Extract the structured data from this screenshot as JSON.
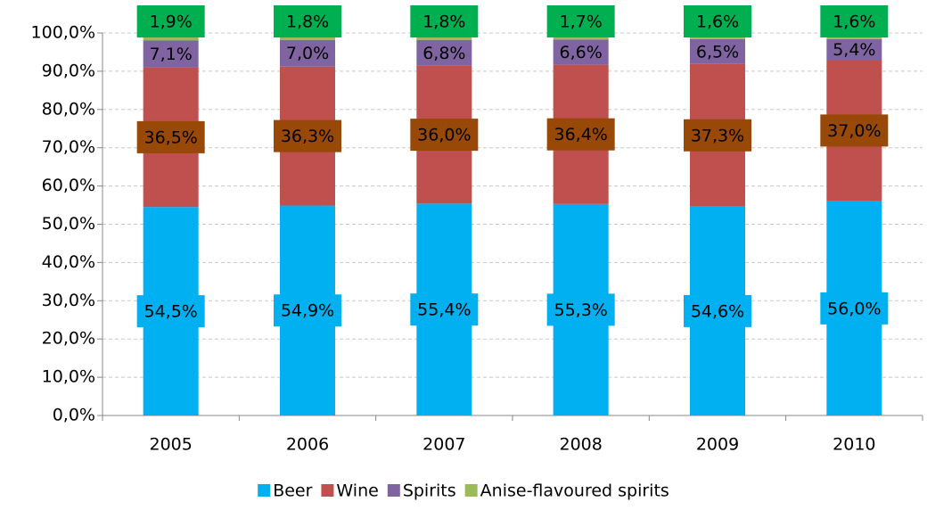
{
  "chart_data": {
    "type": "stacked_bar",
    "categories": [
      "2005",
      "2006",
      "2007",
      "2008",
      "2009",
      "2010"
    ],
    "series": [
      {
        "name": "Beer",
        "color": "#00b0f0",
        "label_fill": "#00b0f0",
        "values": [
          54.5,
          54.9,
          55.4,
          55.3,
          54.6,
          56.0
        ],
        "value_labels": [
          "54,5%",
          "54,9%",
          "55,4%",
          "55,3%",
          "54,6%",
          "56,0%"
        ]
      },
      {
        "name": "Wine",
        "color": "#c0504d",
        "label_fill": "#984807",
        "values": [
          36.5,
          36.3,
          36.0,
          36.4,
          37.3,
          37.0
        ],
        "value_labels": [
          "36,5%",
          "36,3%",
          "36,0%",
          "36,4%",
          "37,3%",
          "37,0%"
        ]
      },
      {
        "name": "Spirits",
        "color": "#8064a2",
        "values": [
          7.1,
          7.0,
          6.8,
          6.6,
          6.5,
          5.4
        ],
        "value_labels": [
          "7,1%",
          "7,0%",
          "6,8%",
          "6,6%",
          "6,5%",
          "5,4%"
        ]
      },
      {
        "name": "Anise-flavoured spirits",
        "color": "#9bbb59",
        "label_fill": "#00b050",
        "values": [
          1.9,
          1.8,
          1.8,
          1.7,
          1.6,
          1.6
        ],
        "value_labels": [
          "1,9%",
          "1,8%",
          "1,8%",
          "1,7%",
          "1,6%",
          "1,6%"
        ]
      }
    ],
    "ylim": [
      0,
      100
    ],
    "yticks": [
      {
        "value": 0,
        "label": "0,0%"
      },
      {
        "value": 10,
        "label": "10,0%"
      },
      {
        "value": 20,
        "label": "20,0%"
      },
      {
        "value": 30,
        "label": "30,0%"
      },
      {
        "value": 40,
        "label": "40,0%"
      },
      {
        "value": 50,
        "label": "50,0%"
      },
      {
        "value": 60,
        "label": "60,0%"
      },
      {
        "value": 70,
        "label": "70,0%"
      },
      {
        "value": 80,
        "label": "80,0%"
      },
      {
        "value": 90,
        "label": "90,0%"
      },
      {
        "value": 100,
        "label": "100,0%"
      }
    ],
    "grid": true,
    "legend": "bottom"
  }
}
